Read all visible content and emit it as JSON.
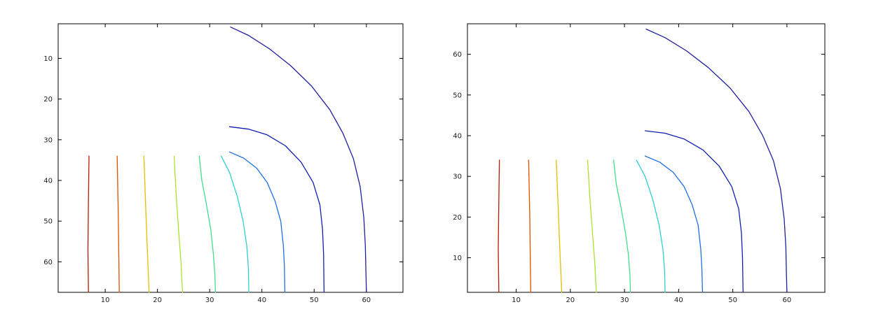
{
  "chart_data": [
    {
      "type": "line",
      "y_direction": "reversed",
      "xlim": [
        1,
        67
      ],
      "ylim": [
        1.5,
        67.5
      ],
      "x_ticks": [
        "10",
        "20",
        "30",
        "40",
        "50",
        "60"
      ],
      "y_ticks": [
        "10",
        "20",
        "30",
        "40",
        "50",
        "60"
      ],
      "grid": false,
      "series": [
        {
          "color": "#c01800",
          "points": [
            [
              6.9,
              34
            ],
            [
              6.8,
              45
            ],
            [
              6.7,
              57
            ],
            [
              6.8,
              67.5
            ]
          ]
        },
        {
          "color": "#e05000",
          "points": [
            [
              12.3,
              34
            ],
            [
              12.5,
              48
            ],
            [
              12.6,
              58
            ],
            [
              12.7,
              67.5
            ]
          ]
        },
        {
          "color": "#e0c000",
          "points": [
            [
              17.4,
              34
            ],
            [
              17.8,
              48
            ],
            [
              18.1,
              58
            ],
            [
              18.4,
              67.5
            ]
          ]
        },
        {
          "color": "#b0e030",
          "points": [
            [
              23.2,
              34
            ],
            [
              23.6,
              44
            ],
            [
              24.1,
              53
            ],
            [
              24.5,
              60
            ],
            [
              24.8,
              67.5
            ]
          ]
        },
        {
          "color": "#40e090",
          "points": [
            [
              28,
              34
            ],
            [
              28.5,
              40
            ],
            [
              29.4,
              46
            ],
            [
              30.2,
              52
            ],
            [
              30.7,
              58
            ],
            [
              31,
              63
            ],
            [
              31.1,
              67.5
            ]
          ]
        },
        {
          "color": "#30d0d0",
          "points": [
            [
              32.2,
              34
            ],
            [
              33.8,
              38
            ],
            [
              35.3,
              44
            ],
            [
              36.4,
              50
            ],
            [
              37.1,
              56
            ],
            [
              37.4,
              61
            ],
            [
              37.5,
              67.5
            ]
          ]
        },
        {
          "color": "#2070e0",
          "points": [
            [
              33.8,
              33
            ],
            [
              36.5,
              34.5
            ],
            [
              39,
              37
            ],
            [
              41,
              40.5
            ],
            [
              42.5,
              45
            ],
            [
              43.6,
              50
            ],
            [
              44.1,
              56
            ],
            [
              44.3,
              61
            ],
            [
              44.4,
              67.5
            ]
          ]
        },
        {
          "color": "#1020b0",
          "points": [
            [
              33.8,
              26.8
            ],
            [
              37.5,
              27.4
            ],
            [
              41,
              28.8
            ],
            [
              44.5,
              31.5
            ],
            [
              47.5,
              35.5
            ],
            [
              49.8,
              40.5
            ],
            [
              51.1,
              46
            ],
            [
              51.6,
              52
            ],
            [
              51.8,
              58
            ],
            [
              51.9,
              67.5
            ]
          ]
        },
        {
          "color": "#2020a0",
          "points": [
            [
              34,
              2.3
            ],
            [
              37.5,
              4.4
            ],
            [
              41.5,
              7.7
            ],
            [
              45.5,
              11.8
            ],
            [
              49.5,
              16.8
            ],
            [
              53,
              22.6
            ],
            [
              55.5,
              28.4
            ],
            [
              57.5,
              34.6
            ],
            [
              58.8,
              41.5
            ],
            [
              59.5,
              49
            ],
            [
              59.8,
              56
            ],
            [
              59.9,
              62
            ],
            [
              60,
              67.5
            ]
          ]
        }
      ]
    },
    {
      "type": "line",
      "y_direction": "normal",
      "xlim": [
        1,
        67
      ],
      "ylim": [
        1.5,
        67.5
      ],
      "x_ticks": [
        "10",
        "20",
        "30",
        "40",
        "50",
        "60"
      ],
      "y_ticks": [
        "10",
        "20",
        "30",
        "40",
        "50",
        "60"
      ],
      "grid": false,
      "series": [
        {
          "color": "#c01800",
          "points": [
            [
              6.9,
              34
            ],
            [
              6.8,
              24
            ],
            [
              6.7,
              12
            ],
            [
              6.8,
              1.5
            ]
          ]
        },
        {
          "color": "#e05000",
          "points": [
            [
              12.3,
              34
            ],
            [
              12.5,
              21
            ],
            [
              12.6,
              11
            ],
            [
              12.7,
              1.5
            ]
          ]
        },
        {
          "color": "#e0c000",
          "points": [
            [
              17.4,
              34
            ],
            [
              17.8,
              21
            ],
            [
              18.1,
              11
            ],
            [
              18.4,
              1.5
            ]
          ]
        },
        {
          "color": "#b0e030",
          "points": [
            [
              23.2,
              34
            ],
            [
              23.6,
              25
            ],
            [
              24.1,
              16
            ],
            [
              24.5,
              9
            ],
            [
              24.8,
              1.5
            ]
          ]
        },
        {
          "color": "#40e090",
          "points": [
            [
              28,
              34
            ],
            [
              28.5,
              28
            ],
            [
              29.4,
              22
            ],
            [
              30.2,
              16
            ],
            [
              30.7,
              11
            ],
            [
              31,
              6
            ],
            [
              31.1,
              1.5
            ]
          ]
        },
        {
          "color": "#30d0d0",
          "points": [
            [
              32.2,
              34
            ],
            [
              33.8,
              30
            ],
            [
              35.3,
              24
            ],
            [
              36.4,
              18
            ],
            [
              37.1,
              12
            ],
            [
              37.4,
              7
            ],
            [
              37.5,
              1.5
            ]
          ]
        },
        {
          "color": "#2070e0",
          "points": [
            [
              33.8,
              35
            ],
            [
              36.5,
              33.5
            ],
            [
              39,
              31
            ],
            [
              41,
              27.5
            ],
            [
              42.5,
              23
            ],
            [
              43.6,
              18
            ],
            [
              44.1,
              12
            ],
            [
              44.3,
              7
            ],
            [
              44.4,
              1.5
            ]
          ]
        },
        {
          "color": "#1020b0",
          "points": [
            [
              33.8,
              41.2
            ],
            [
              37.5,
              40.6
            ],
            [
              41,
              39.2
            ],
            [
              44.5,
              36.5
            ],
            [
              47.5,
              32.5
            ],
            [
              49.8,
              27.5
            ],
            [
              51.1,
              22
            ],
            [
              51.6,
              16
            ],
            [
              51.8,
              10
            ],
            [
              51.9,
              1.5
            ]
          ]
        },
        {
          "color": "#2020a0",
          "points": [
            [
              34,
              66.2
            ],
            [
              37.5,
              64.1
            ],
            [
              41.5,
              60.8
            ],
            [
              45.5,
              56.7
            ],
            [
              49.5,
              51.7
            ],
            [
              53,
              45.9
            ],
            [
              55.5,
              40.1
            ],
            [
              57.5,
              33.9
            ],
            [
              58.8,
              27
            ],
            [
              59.5,
              19.5
            ],
            [
              59.8,
              12.5
            ],
            [
              59.9,
              6.5
            ],
            [
              60,
              1.5
            ]
          ]
        }
      ]
    }
  ]
}
